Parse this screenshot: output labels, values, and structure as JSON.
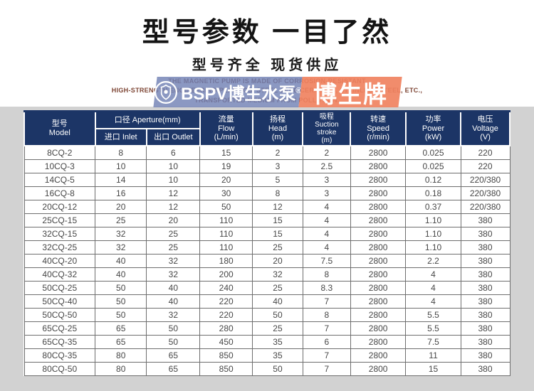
{
  "page": {
    "title": "型号参数  一目了然",
    "subtitle": "型号齐全  现货供应",
    "banner": {
      "line1": "THE MAGNETIC PUMP IS MADE OF CORROSION-RESISTANT",
      "line2": "HIGH-STRENGTH ENGINEERING PLASTICS, STEEL JADE CERAMICS, STAINLESS STEEL, ETC.,",
      "line3": "TRANSPORTED MEDIUM FROM POLLUTION.",
      "watermark_brand": "BSPV博生水泵",
      "watermark_reg": "®",
      "watermark_badge": "博生牌"
    }
  },
  "colors": {
    "header_navy": "#1c3566",
    "watermark_blue": "#7181b5",
    "watermark_orange": "#f0825f",
    "banner_text_maroon": "#7d4534",
    "page_gray": "#d2d2d2"
  },
  "table": {
    "headers": {
      "model": "型号\nModel",
      "aperture": "口径  Aperture(mm)",
      "inlet": "进口  Inlet",
      "outlet": "出口  Outlet",
      "flow": "流量\nFlow\n(L/min)",
      "head": "扬程\nHead\n(m)",
      "suction": "吸程\nSuction\nstroke\n(m)",
      "speed": "转速\nSpeed\n(r/min)",
      "power": "功率\nPower\n(kW)",
      "voltage": "电压\nVoltage\n(V)"
    },
    "rows": [
      [
        "8CQ-2",
        "8",
        "6",
        "15",
        "2",
        "2",
        "2800",
        "0.025",
        "220"
      ],
      [
        "10CQ-3",
        "10",
        "10",
        "19",
        "3",
        "2.5",
        "2800",
        "0.025",
        "220"
      ],
      [
        "14CQ-5",
        "14",
        "10",
        "20",
        "5",
        "3",
        "2800",
        "0.12",
        "220/380"
      ],
      [
        "16CQ-8",
        "16",
        "12",
        "30",
        "8",
        "3",
        "2800",
        "0.18",
        "220/380"
      ],
      [
        "20CQ-12",
        "20",
        "12",
        "50",
        "12",
        "4",
        "2800",
        "0.37",
        "220/380"
      ],
      [
        "25CQ-15",
        "25",
        "20",
        "110",
        "15",
        "4",
        "2800",
        "1.10",
        "380"
      ],
      [
        "32CQ-15",
        "32",
        "25",
        "110",
        "15",
        "4",
        "2800",
        "1.10",
        "380"
      ],
      [
        "32CQ-25",
        "32",
        "25",
        "110",
        "25",
        "4",
        "2800",
        "1.10",
        "380"
      ],
      [
        "40CQ-20",
        "40",
        "32",
        "180",
        "20",
        "7.5",
        "2800",
        "2.2",
        "380"
      ],
      [
        "40CQ-32",
        "40",
        "32",
        "200",
        "32",
        "8",
        "2800",
        "4",
        "380"
      ],
      [
        "50CQ-25",
        "50",
        "40",
        "240",
        "25",
        "8.3",
        "2800",
        "4",
        "380"
      ],
      [
        "50CQ-40",
        "50",
        "40",
        "220",
        "40",
        "7",
        "2800",
        "4",
        "380"
      ],
      [
        "50CQ-50",
        "50",
        "32",
        "220",
        "50",
        "8",
        "2800",
        "5.5",
        "380"
      ],
      [
        "65CQ-25",
        "65",
        "50",
        "280",
        "25",
        "7",
        "2800",
        "5.5",
        "380"
      ],
      [
        "65CQ-35",
        "65",
        "50",
        "450",
        "35",
        "6",
        "2800",
        "7.5",
        "380"
      ],
      [
        "80CQ-35",
        "80",
        "65",
        "850",
        "35",
        "7",
        "2800",
        "11",
        "380"
      ],
      [
        "80CQ-50",
        "80",
        "65",
        "850",
        "50",
        "7",
        "2800",
        "15",
        "380"
      ]
    ]
  }
}
